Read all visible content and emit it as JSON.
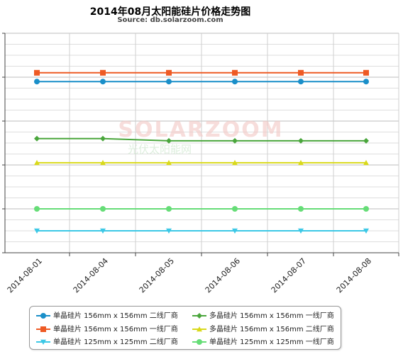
{
  "title": "2014年08月太阳能硅片价格走势图",
  "subtitle": "Source: db.solarzoom.com",
  "watermark": {
    "text": "SOLARZOOM",
    "subtext": "光伏太阳能网"
  },
  "chart_data": {
    "type": "line",
    "title": "2014年08月太阳能硅片价格走势图",
    "categories": [
      "2014-08-01",
      "2014-08-04",
      "2014-08-05",
      "2014-08-06",
      "2014-08-07",
      "2014-08-08"
    ],
    "ylim": [
      0,
      10
    ],
    "grid": true,
    "legend_position": "bottom",
    "series": [
      {
        "name": "单晶硅片 156mm x 156mm 二线厂商",
        "color": "#1a8fc9",
        "marker": "circle",
        "values": [
          7.8,
          7.8,
          7.8,
          7.8,
          7.8,
          7.8
        ]
      },
      {
        "name": "单晶硅片 156mm x 156mm 一线厂商",
        "color": "#ee5a24",
        "marker": "square",
        "values": [
          8.2,
          8.2,
          8.2,
          8.2,
          8.2,
          8.2
        ]
      },
      {
        "name": "单晶硅片 125mm x 125mm 二线厂商",
        "color": "#3cc8e6",
        "marker": "tri-down",
        "values": [
          1.0,
          1.0,
          1.0,
          1.0,
          1.0,
          1.0
        ]
      },
      {
        "name": "多晶硅片 156mm x 156mm 一线厂商",
        "color": "#4aa63c",
        "marker": "diamond",
        "values": [
          5.2,
          5.2,
          5.1,
          5.1,
          5.1,
          5.1
        ]
      },
      {
        "name": "多晶硅片 156mm x 156mm 二线厂商",
        "color": "#d9d91a",
        "marker": "tri-up",
        "values": [
          4.1,
          4.1,
          4.1,
          4.1,
          4.1,
          4.1
        ]
      },
      {
        "name": "单晶硅片 125mm x 125mm 一线厂商",
        "color": "#66dd77",
        "marker": "circle",
        "values": [
          2.0,
          2.0,
          2.0,
          2.0,
          2.0,
          2.0
        ]
      }
    ]
  }
}
